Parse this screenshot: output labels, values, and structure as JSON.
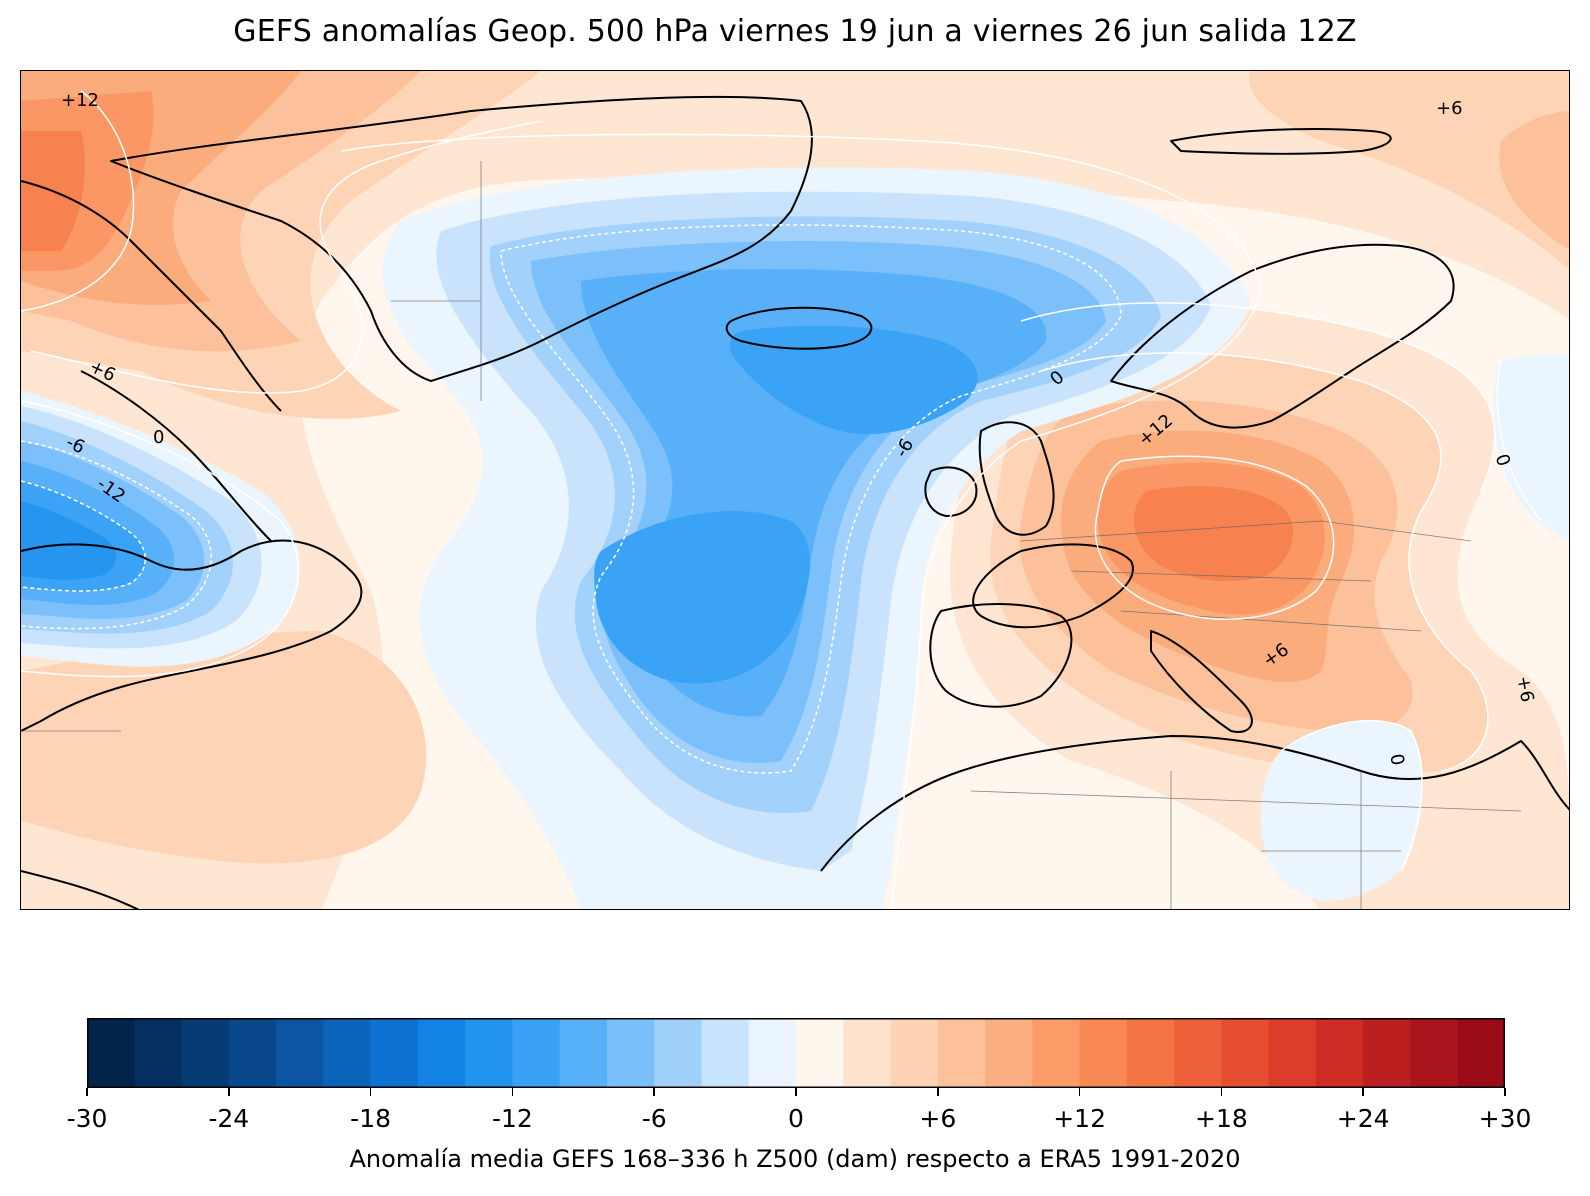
{
  "title": "GEFS anomalías Geop. 500 hPa viernes 19 jun a viernes 26 jun salida 12Z",
  "contour_labels": {
    "c1": "+12",
    "c2": "+6",
    "c3": "+6",
    "c4": "-6",
    "c5": "0",
    "c6": "-12",
    "c7": "0",
    "c8": "-6",
    "c9": "+12",
    "c10": "0",
    "c11": "+6",
    "c12": "+6",
    "c13": "0"
  },
  "colorbar": {
    "ticks": [
      "-30",
      "-24",
      "-18",
      "-12",
      "-6",
      "0",
      "+6",
      "+12",
      "+18",
      "+24",
      "+30"
    ],
    "label": "Anomalía media GEFS 168–336 h Z500 (dam) respecto a ERA5 1991-2020",
    "range": [
      -30,
      30
    ],
    "step": 2,
    "colors": [
      "#04254f",
      "#073a74",
      "#0a4c90",
      "#0b5bab",
      "#0b68c4",
      "#0d78d9",
      "#1788e6",
      "#2595ef",
      "#3aa3f5",
      "#58b1f8",
      "#7bc0fa",
      "#a2d1fb",
      "#c9e3fc",
      "#ebf5fe",
      "#fff6ee",
      "#fee6d3",
      "#fdd4b6",
      "#fcc19a",
      "#fbac7d",
      "#fa9764",
      "#f7824f",
      "#f46b3e",
      "#ee5434",
      "#e3402c",
      "#d42e25",
      "#bf1e1f",
      "#a8111b"
    ]
  },
  "map": {
    "field_colors": {
      "pos2": "#fee6d3",
      "pos4": "#fdd4b6",
      "pos6": "#fcc19a",
      "pos8": "#fbac7d",
      "pos10": "#fa9764",
      "pos12": "#f7824f",
      "pos14": "#f46b3e",
      "neg2": "#ebf5fe",
      "neg4": "#c9e3fc",
      "neg6": "#a2d1fb",
      "neg8": "#7bc0fa",
      "neg10": "#58b1f8",
      "neg12": "#3aa3f5",
      "neg14": "#2595ef"
    }
  }
}
